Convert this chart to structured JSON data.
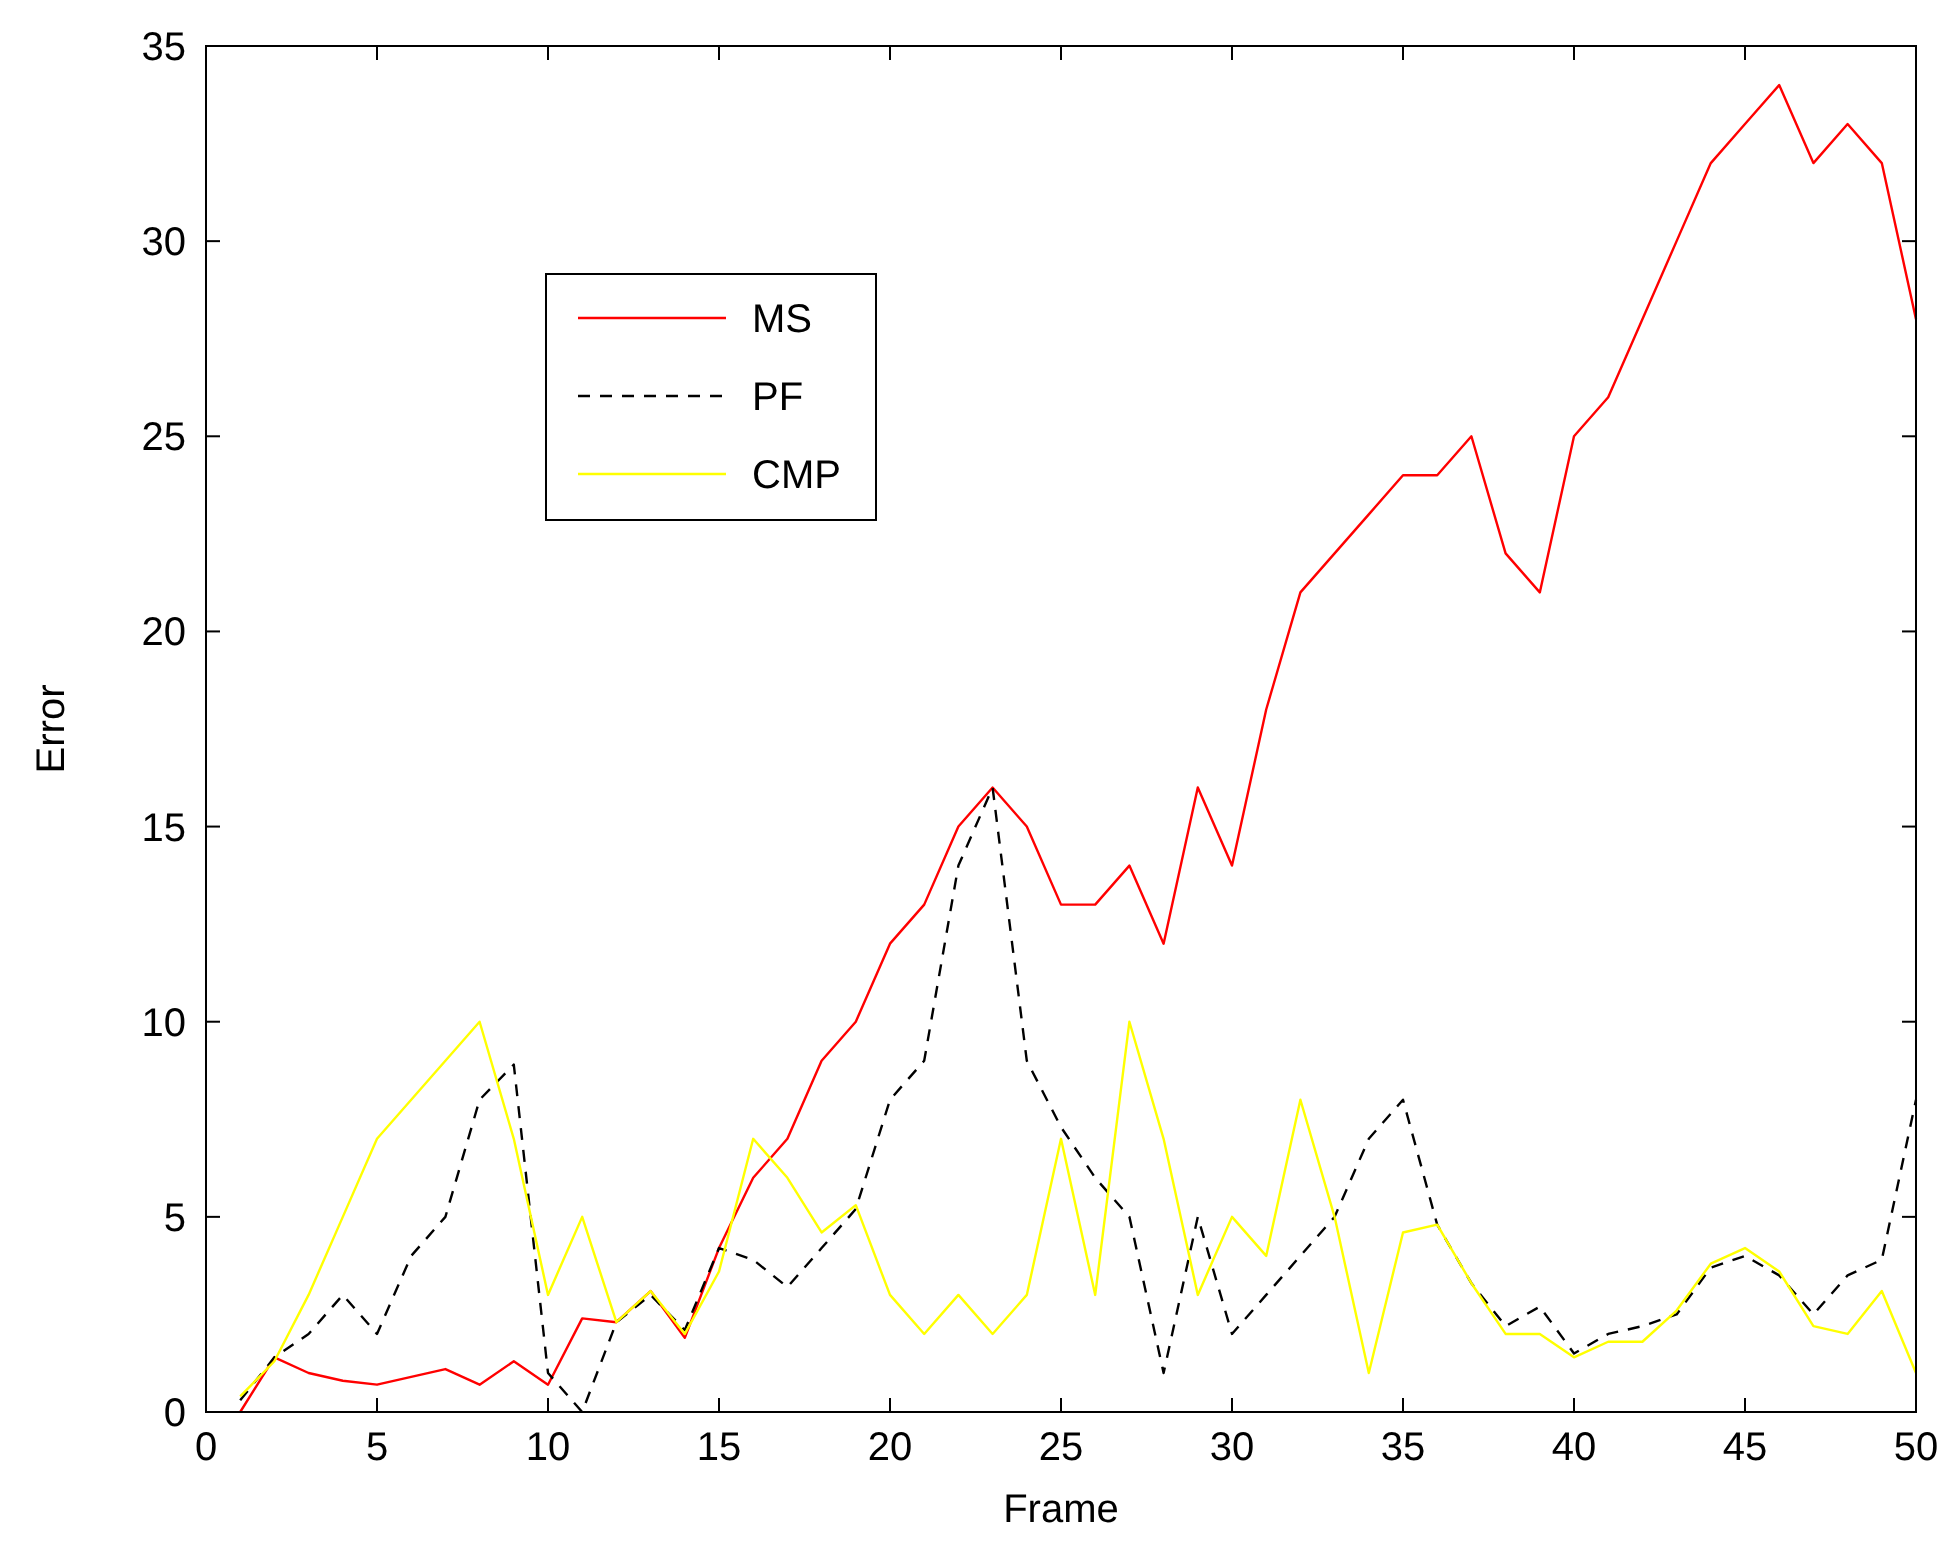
{
  "chart_data": {
    "type": "line",
    "xlabel": "Frame",
    "ylabel": "Error",
    "x": [
      1,
      2,
      3,
      4,
      5,
      6,
      7,
      8,
      9,
      10,
      11,
      12,
      13,
      14,
      15,
      16,
      17,
      18,
      19,
      20,
      21,
      22,
      23,
      24,
      25,
      26,
      27,
      28,
      29,
      30,
      31,
      32,
      33,
      34,
      35,
      36,
      37,
      38,
      39,
      40,
      41,
      42,
      43,
      44,
      45,
      46,
      47,
      48,
      49,
      50
    ],
    "xlim": [
      0,
      50
    ],
    "xticks": [
      0,
      5,
      10,
      15,
      20,
      25,
      30,
      35,
      40,
      45,
      50
    ],
    "ylim": [
      0,
      35
    ],
    "yticks": [
      0,
      5,
      10,
      15,
      20,
      25,
      30,
      35
    ],
    "grid": false,
    "legend": "top left",
    "series": [
      {
        "name": "MS",
        "color": "#ff0000",
        "line_style": "solid",
        "values": [
          0,
          1.4,
          1.0,
          0.8,
          0.7,
          0.9,
          1.1,
          0.7,
          1.3,
          0.7,
          2.4,
          2.3,
          3.1,
          1.9,
          4.2,
          6,
          7,
          9,
          10,
          12,
          13,
          15,
          16,
          15,
          13,
          13,
          14,
          12,
          16,
          14,
          18,
          21,
          22,
          23,
          24,
          24,
          25,
          22,
          21,
          25,
          26,
          28,
          30,
          32,
          33,
          34,
          32,
          33,
          32,
          28
        ]
      },
      {
        "name": "PF",
        "color": "#000000",
        "line_style": "dashed",
        "values": [
          0.3,
          1.4,
          2,
          3,
          2,
          4,
          5,
          8,
          8.9,
          1,
          0,
          2.3,
          3,
          2.1,
          4.2,
          3.9,
          3.2,
          4.2,
          5.2,
          8,
          9,
          14,
          16,
          9,
          7.3,
          6,
          5,
          1,
          5,
          2,
          3,
          4,
          5,
          7,
          8,
          4.8,
          3.3,
          2.2,
          2.7,
          1.5,
          2,
          2.2,
          2.5,
          3.7,
          4,
          3.5,
          2.5,
          3.5,
          3.9,
          8
        ]
      },
      {
        "name": "CMP",
        "color": "#ffff00",
        "line_style": "solid",
        "values": [
          0.4,
          1.3,
          3,
          5,
          7,
          8,
          9,
          10,
          7,
          3,
          5,
          2.3,
          3.1,
          2,
          3.6,
          7,
          6,
          4.6,
          5.3,
          3,
          2,
          3,
          2,
          3,
          7,
          3,
          10,
          7,
          3,
          5,
          4,
          8,
          5,
          1,
          4.6,
          4.8,
          3.3,
          2,
          2,
          1.4,
          1.8,
          1.8,
          2.6,
          3.8,
          4.2,
          3.6,
          2.2,
          2,
          3.1,
          1
        ]
      }
    ]
  }
}
